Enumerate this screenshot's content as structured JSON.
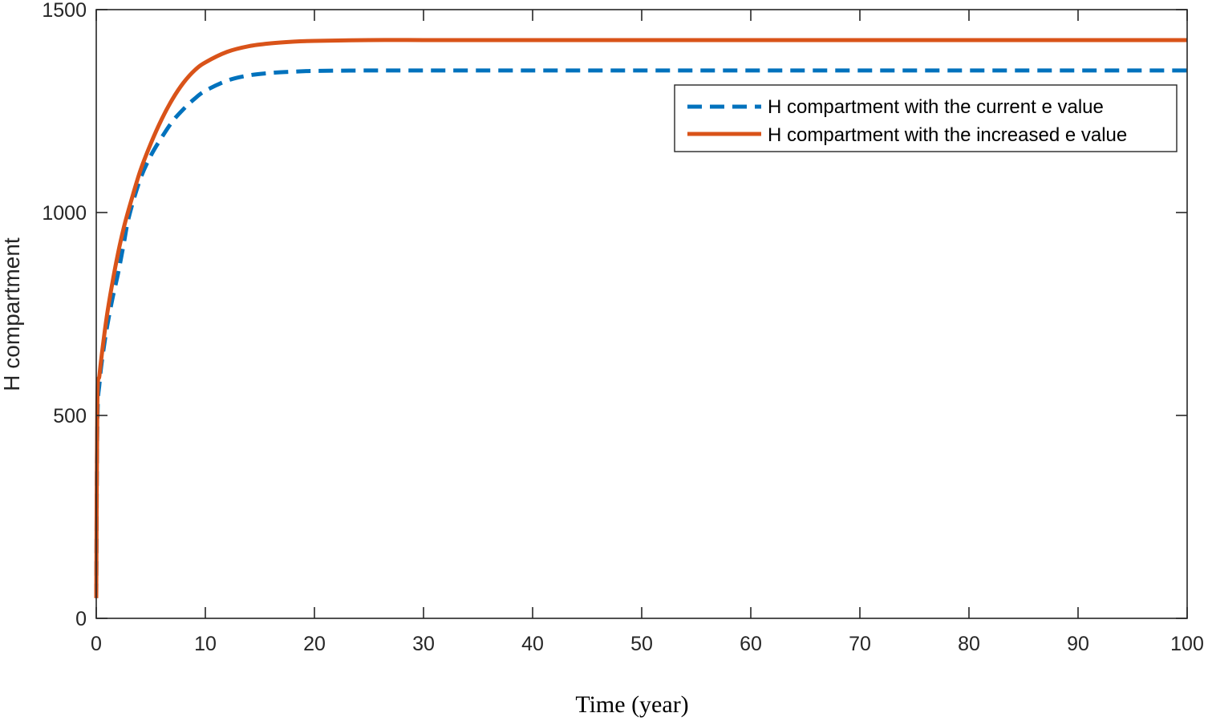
{
  "chart_data": {
    "type": "line",
    "title": "",
    "xlabel": "Time (year)",
    "ylabel": "H compartment",
    "xlim": [
      0,
      100
    ],
    "ylim": [
      0,
      1500
    ],
    "xticks": [
      0,
      10,
      20,
      30,
      40,
      50,
      60,
      70,
      80,
      90,
      100
    ],
    "yticks": [
      0,
      500,
      1000,
      1500
    ],
    "grid": false,
    "box": true,
    "legend_position": "top-right",
    "series": [
      {
        "name": "H compartment with the current e value",
        "color": "#0072BD",
        "style": "dashed",
        "x": [
          0,
          0.1,
          0.3,
          0.6,
          1,
          1.5,
          2,
          2.5,
          3,
          4,
          5,
          6,
          7,
          8,
          9,
          10,
          12,
          14,
          16,
          18,
          20,
          25,
          30,
          40,
          50,
          60,
          70,
          80,
          90,
          100
        ],
        "y": [
          50,
          480,
          580,
          650,
          720,
          790,
          850,
          920,
          990,
          1080,
          1140,
          1185,
          1225,
          1255,
          1280,
          1300,
          1325,
          1338,
          1344,
          1347,
          1349,
          1350,
          1350,
          1350,
          1350,
          1350,
          1350,
          1350,
          1350,
          1350
        ]
      },
      {
        "name": "H compartment with the increased e value",
        "color": "#D95319",
        "style": "solid",
        "x": [
          0,
          0.1,
          0.3,
          0.6,
          1,
          1.5,
          2,
          2.5,
          3,
          4,
          5,
          6,
          7,
          8,
          9,
          10,
          12,
          14,
          16,
          18,
          20,
          25,
          30,
          40,
          50,
          60,
          70,
          80,
          90,
          100
        ],
        "y": [
          50,
          530,
          600,
          670,
          750,
          830,
          900,
          960,
          1010,
          1100,
          1170,
          1230,
          1280,
          1320,
          1350,
          1370,
          1396,
          1410,
          1417,
          1421,
          1423,
          1425,
          1425,
          1425,
          1425,
          1425,
          1425,
          1425,
          1425,
          1425
        ]
      }
    ]
  }
}
